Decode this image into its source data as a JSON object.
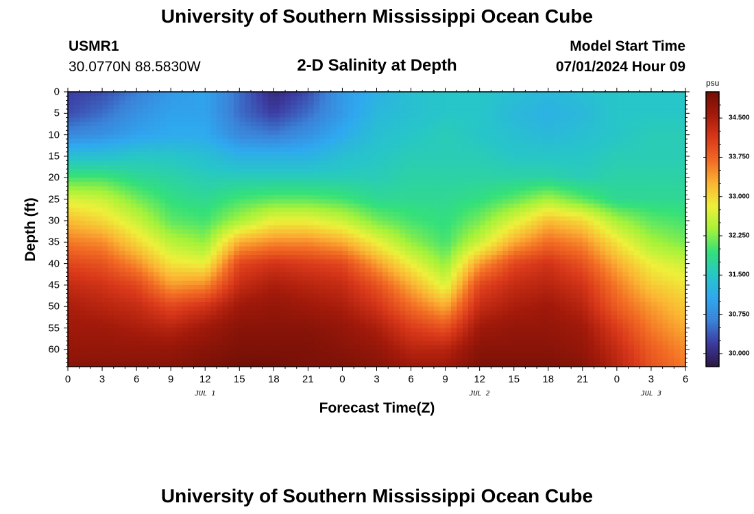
{
  "header": {
    "title": "University of Southern Mississippi Ocean Cube",
    "station_id": "USMR1",
    "coordinates": "30.0770N  88.5830W",
    "subtitle": "2-D Salinity at Depth",
    "model_start_label": "Model Start Time",
    "model_start_value": "07/01/2024 Hour 09"
  },
  "footer": {
    "title": "University of Southern Mississippi Ocean Cube"
  },
  "colors": {
    "colormap": [
      "#2a1643",
      "#3c3aa0",
      "#3b82d8",
      "#2fa8f0",
      "#27c6c8",
      "#34e07a",
      "#a5f23a",
      "#eef03a",
      "#fbb533",
      "#f26b24",
      "#d9381a",
      "#a31a0a",
      "#730f07"
    ]
  },
  "chart_data": {
    "type": "heatmap",
    "title": "2-D Salinity at Depth",
    "xlabel": "Forecast Time(Z)",
    "ylabel": "Depth (ft)",
    "x_range_hours": [
      0,
      54
    ],
    "x_ticks": [
      {
        "h": 0,
        "label": "0"
      },
      {
        "h": 3,
        "label": "3"
      },
      {
        "h": 6,
        "label": "6"
      },
      {
        "h": 9,
        "label": "9"
      },
      {
        "h": 12,
        "label": "12"
      },
      {
        "h": 15,
        "label": "15"
      },
      {
        "h": 18,
        "label": "18"
      },
      {
        "h": 21,
        "label": "21"
      },
      {
        "h": 24,
        "label": "0"
      },
      {
        "h": 27,
        "label": "3"
      },
      {
        "h": 30,
        "label": "6"
      },
      {
        "h": 33,
        "label": "9"
      },
      {
        "h": 36,
        "label": "12"
      },
      {
        "h": 39,
        "label": "15"
      },
      {
        "h": 42,
        "label": "18"
      },
      {
        "h": 45,
        "label": "21"
      },
      {
        "h": 48,
        "label": "0"
      },
      {
        "h": 51,
        "label": "3"
      },
      {
        "h": 54,
        "label": "6"
      }
    ],
    "date_labels": [
      {
        "h": 12,
        "label": "JUL 1"
      },
      {
        "h": 36,
        "label": "JUL 2"
      },
      {
        "h": 51,
        "label": "JUL 3"
      }
    ],
    "ylim": [
      0,
      64
    ],
    "y_ticks": [
      0,
      5,
      10,
      15,
      20,
      25,
      30,
      35,
      40,
      45,
      50,
      55,
      60
    ],
    "colorbar": {
      "unit": "psu",
      "range": [
        29.75,
        35.0
      ],
      "ticks": [
        "34.500",
        "33.750",
        "33.000",
        "32.250",
        "31.500",
        "30.750",
        "30.000"
      ]
    },
    "salinity_grid": {
      "x_hours": [
        0,
        3,
        6,
        9,
        12,
        15,
        18,
        21,
        24,
        27,
        30,
        33,
        36,
        39,
        42,
        45,
        48,
        51,
        54
      ],
      "depths_ft": [
        0,
        5,
        10,
        15,
        20,
        25,
        30,
        35,
        40,
        45,
        50,
        55,
        60,
        64
      ],
      "values": [
        [
          30.2,
          30.3,
          30.6,
          30.9,
          31.0,
          30.5,
          30.0,
          30.3,
          30.9,
          31.2,
          31.4,
          31.5,
          31.5,
          31.4,
          31.3,
          31.4,
          31.5,
          31.5,
          31.5
        ],
        [
          30.3,
          30.5,
          30.8,
          31.0,
          31.0,
          30.5,
          30.2,
          30.5,
          30.9,
          31.3,
          31.4,
          31.5,
          31.5,
          31.3,
          31.2,
          31.3,
          31.5,
          31.5,
          31.5
        ],
        [
          30.7,
          30.8,
          31.0,
          31.1,
          31.1,
          30.7,
          30.6,
          30.8,
          31.1,
          31.4,
          31.5,
          31.6,
          31.5,
          31.4,
          31.3,
          31.4,
          31.5,
          31.6,
          31.6
        ],
        [
          31.4,
          31.4,
          31.5,
          31.5,
          31.4,
          31.2,
          31.2,
          31.2,
          31.4,
          31.5,
          31.6,
          31.6,
          31.6,
          31.5,
          31.5,
          31.5,
          31.6,
          31.6,
          31.6
        ],
        [
          32.0,
          32.0,
          31.8,
          31.7,
          31.6,
          31.6,
          31.6,
          31.6,
          31.6,
          31.6,
          31.7,
          31.7,
          31.7,
          31.7,
          31.7,
          31.6,
          31.7,
          31.7,
          31.7
        ],
        [
          32.7,
          32.6,
          32.2,
          31.9,
          31.8,
          32.0,
          32.1,
          32.1,
          32.0,
          31.8,
          31.8,
          31.8,
          31.9,
          32.1,
          32.4,
          32.1,
          31.8,
          31.8,
          31.8
        ],
        [
          33.2,
          33.0,
          32.6,
          32.1,
          32.0,
          32.4,
          32.8,
          32.8,
          32.6,
          32.2,
          32.0,
          31.9,
          32.2,
          32.7,
          33.2,
          33.0,
          32.4,
          32.1,
          32.0
        ],
        [
          33.6,
          33.5,
          33.0,
          32.5,
          32.3,
          33.3,
          33.5,
          33.5,
          33.3,
          32.8,
          32.3,
          32.0,
          32.6,
          33.3,
          33.7,
          33.5,
          32.9,
          32.4,
          32.2
        ],
        [
          34.0,
          33.9,
          33.5,
          32.9,
          32.8,
          34.0,
          34.2,
          34.1,
          34.0,
          33.4,
          32.8,
          32.3,
          33.4,
          34.0,
          34.2,
          33.9,
          33.3,
          32.8,
          32.6
        ],
        [
          34.3,
          34.2,
          34.0,
          33.4,
          33.5,
          34.3,
          34.5,
          34.4,
          34.3,
          33.9,
          33.3,
          32.7,
          34.0,
          34.3,
          34.4,
          34.2,
          33.6,
          33.1,
          32.9
        ],
        [
          34.5,
          34.4,
          34.3,
          34.0,
          34.2,
          34.6,
          34.7,
          34.6,
          34.5,
          34.2,
          33.7,
          33.3,
          34.3,
          34.5,
          34.6,
          34.4,
          33.8,
          33.4,
          33.1
        ],
        [
          34.6,
          34.6,
          34.5,
          34.4,
          34.6,
          34.8,
          34.8,
          34.8,
          34.7,
          34.5,
          34.1,
          33.9,
          34.6,
          34.7,
          34.7,
          34.6,
          34.1,
          33.6,
          33.3
        ],
        [
          34.7,
          34.7,
          34.7,
          34.7,
          34.8,
          34.9,
          34.9,
          34.9,
          34.8,
          34.7,
          34.4,
          34.4,
          34.8,
          34.8,
          34.8,
          34.7,
          34.3,
          33.8,
          33.5
        ],
        [
          34.8,
          34.8,
          34.8,
          34.8,
          34.9,
          35.0,
          35.0,
          34.9,
          34.9,
          34.8,
          34.6,
          34.6,
          34.9,
          34.9,
          34.9,
          34.8,
          34.4,
          33.9,
          33.6
        ]
      ]
    }
  }
}
